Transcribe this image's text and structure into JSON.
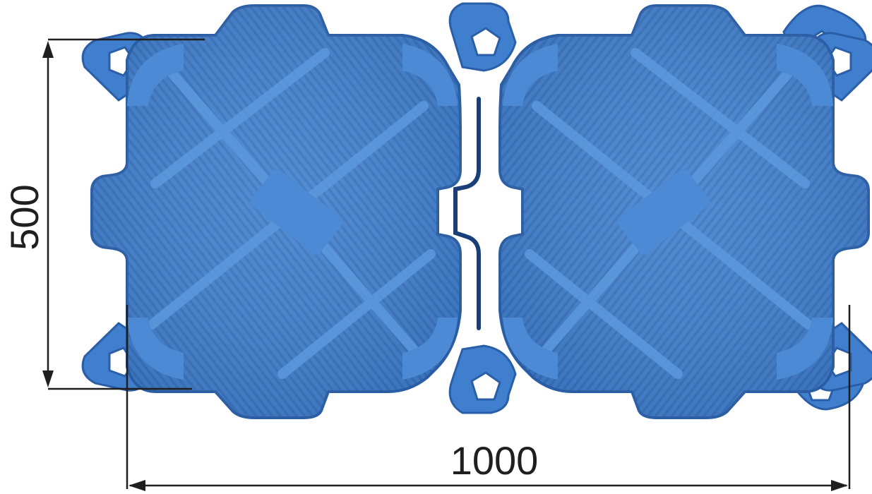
{
  "dimensions": {
    "height_label": "500",
    "width_label": "1000"
  },
  "colors": {
    "float_body": "#3f7fce",
    "float_light": "#5d99df",
    "float_dark": "#2a5fa8",
    "float_edge": "#1f4d8f",
    "dimension_line": "#1f1f1f"
  },
  "icons": [
    "pontoon-cube",
    "mooring-lug",
    "dimension-arrow"
  ]
}
